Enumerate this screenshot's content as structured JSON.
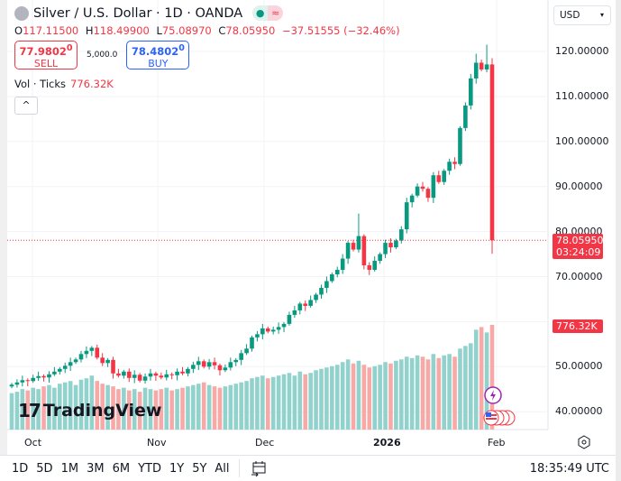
{
  "header": {
    "title": "Silver / U.S. Dollar · 1D · OANDA",
    "status_open": "●",
    "status_wave": "≈"
  },
  "ohlc": {
    "o_label": "O",
    "o": "117.11500",
    "h_label": "H",
    "h": "118.49900",
    "l_label": "L",
    "l": "75.08970",
    "c_label": "C",
    "c": "78.05950",
    "change": "−37.51555 (−32.46%)"
  },
  "trade": {
    "sell_price": "77.9802",
    "sell_sup": "0",
    "sell_label": "SELL",
    "qty": "5,000.0",
    "buy_price": "78.4802",
    "buy_sup": "0",
    "buy_label": "BUY"
  },
  "volume": {
    "label": "Vol · Ticks",
    "value": "776.32K"
  },
  "collapse_icon": "^",
  "currency": {
    "label": "USD",
    "chevron": "▾"
  },
  "price_axis": [
    "120.00000",
    "110.00000",
    "100.00000",
    "90.00000",
    "80.00000",
    "70.00000",
    "50.00000",
    "40.00000"
  ],
  "last_price": {
    "price": "78.05950",
    "countdown": "03:24:09",
    "volume": "776.32K"
  },
  "logo": "TradingView",
  "time_axis": [
    {
      "label": "Oct",
      "bold": false
    },
    {
      "label": "Nov",
      "bold": false
    },
    {
      "label": "Dec",
      "bold": false
    },
    {
      "label": "2026",
      "bold": true
    },
    {
      "label": "Feb",
      "bold": false
    }
  ],
  "ranges": [
    "1D",
    "5D",
    "1M",
    "3M",
    "6M",
    "YTD",
    "1Y",
    "5Y",
    "All"
  ],
  "clock": "18:35:49 UTC",
  "colors": {
    "up": "#089981",
    "down": "#f23645",
    "vol_up": "#92d2cc",
    "vol_down": "#f7a9a7"
  },
  "chart_data": {
    "type": "candlestick",
    "ylim": [
      36,
      124
    ],
    "first_open": 45.6,
    "close": [
      46.0,
      46.5,
      47.0,
      46.8,
      47.5,
      47.9,
      47.6,
      48.3,
      48.9,
      49.5,
      50.2,
      51.0,
      51.6,
      52.8,
      53.5,
      54.2,
      52.0,
      50.8,
      51.5,
      48.5,
      48.0,
      48.9,
      47.5,
      48.2,
      46.9,
      47.8,
      48.5,
      48.0,
      47.6,
      48.3,
      48.1,
      48.9,
      48.5,
      49.5,
      50.4,
      51.2,
      50.0,
      51.0,
      50.3,
      49.2,
      49.8,
      51.0,
      51.5,
      53.0,
      54.0,
      56.5,
      57.2,
      58.5,
      57.8,
      58.2,
      58.8,
      59.5,
      61.5,
      62.5,
      64.0,
      63.5,
      64.8,
      66.0,
      67.5,
      69.0,
      70.5,
      71.5,
      74.0,
      77.5,
      76.0,
      79.0,
      72.5,
      71.5,
      73.5,
      75.0,
      77.5,
      76.5,
      78.0,
      80.5,
      86.5,
      88.0,
      90.0,
      89.5,
      87.5,
      92.5,
      91.0,
      93.5,
      95.5,
      95.0,
      103.0,
      108.0,
      114.0,
      117.5,
      116.0,
      117.115,
      78.0595
    ],
    "high_override": {
      "65": 84.0,
      "87": 119.5,
      "89": 121.5,
      "90": 118.499
    },
    "low_override": {
      "90": 75.0897
    },
    "volume_k": [
      270,
      280,
      300,
      290,
      310,
      300,
      320,
      330,
      310,
      340,
      350,
      360,
      330,
      370,
      380,
      400,
      360,
      340,
      330,
      320,
      300,
      310,
      290,
      300,
      280,
      310,
      300,
      290,
      300,
      310,
      290,
      300,
      310,
      320,
      330,
      340,
      350,
      330,
      320,
      310,
      320,
      330,
      340,
      350,
      360,
      380,
      390,
      400,
      380,
      390,
      400,
      410,
      420,
      400,
      430,
      410,
      420,
      440,
      450,
      460,
      470,
      480,
      500,
      520,
      490,
      510,
      480,
      460,
      470,
      480,
      500,
      490,
      510,
      520,
      540,
      530,
      550,
      540,
      520,
      560,
      530,
      550,
      560,
      540,
      600,
      620,
      640,
      740,
      760,
      720,
      776
    ]
  }
}
